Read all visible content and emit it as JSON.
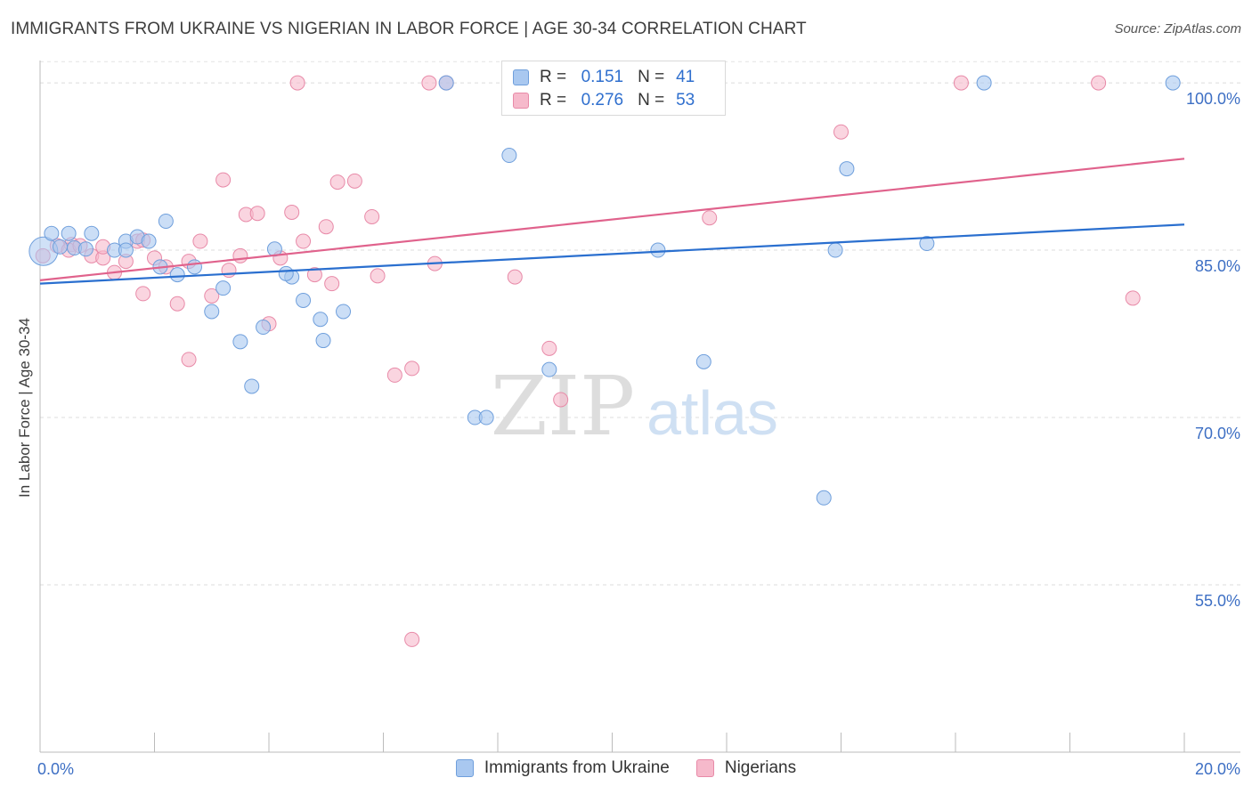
{
  "header": {
    "title": "IMMIGRANTS FROM UKRAINE VS NIGERIAN IN LABOR FORCE | AGE 30-34 CORRELATION CHART",
    "source": "Source: ZipAtlas.com"
  },
  "watermark": {
    "zip": "ZIP",
    "atlas": "atlas"
  },
  "legend": {
    "r_label": "R =",
    "n_label": "N =",
    "series": [
      {
        "r": "0.151",
        "n": "41"
      },
      {
        "r": "0.276",
        "n": "53"
      }
    ]
  },
  "colors": {
    "blue_fill": "#a9c8f0",
    "blue_stroke": "#6f9fdc",
    "blue_line": "#2a6fcf",
    "pink_fill": "#f6b9cb",
    "pink_stroke": "#e88aa8",
    "pink_line": "#e0628c",
    "axis_label": "#3d6fc4"
  },
  "chart_data": {
    "type": "scatter",
    "title": "IMMIGRANTS FROM UKRAINE VS NIGERIAN IN LABOR FORCE | AGE 30-34 CORRELATION CHART",
    "xlabel": "",
    "ylabel": "In Labor Force | Age 30-34",
    "xlim": [
      0,
      20
    ],
    "ylim": [
      40,
      102
    ],
    "x_tick_labels": [
      "0.0%",
      "20.0%"
    ],
    "y_ticks": [
      55,
      70,
      85,
      100
    ],
    "y_tick_labels": [
      "55.0%",
      "70.0%",
      "85.0%",
      "100.0%"
    ],
    "grid": true,
    "legend_position": "top-center",
    "series": [
      {
        "name": "Immigrants from Ukraine",
        "color": "#a9c8f0",
        "trend": {
          "x": [
            0,
            20
          ],
          "y": [
            82.0,
            87.3
          ]
        },
        "points": [
          [
            0.06,
            84.9
          ],
          [
            0.2,
            86.5
          ],
          [
            0.35,
            85.3
          ],
          [
            0.9,
            86.5
          ],
          [
            0.5,
            86.5
          ],
          [
            0.6,
            85.2
          ],
          [
            0.8,
            85.1
          ],
          [
            1.3,
            85.0
          ],
          [
            1.5,
            85.8
          ],
          [
            1.7,
            86.2
          ],
          [
            1.9,
            85.8
          ],
          [
            2.2,
            87.6
          ],
          [
            2.4,
            82.8
          ],
          [
            2.7,
            83.5
          ],
          [
            3.0,
            79.5
          ],
          [
            2.1,
            83.5
          ],
          [
            3.2,
            81.6
          ],
          [
            3.5,
            76.8
          ],
          [
            3.7,
            72.8
          ],
          [
            3.9,
            78.1
          ],
          [
            4.1,
            85.1
          ],
          [
            4.4,
            82.6
          ],
          [
            4.3,
            82.9
          ],
          [
            4.6,
            80.5
          ],
          [
            4.9,
            78.8
          ],
          [
            4.95,
            76.9
          ],
          [
            7.6,
            70.0
          ],
          [
            7.8,
            70.0
          ],
          [
            8.2,
            93.5
          ],
          [
            8.9,
            74.3
          ],
          [
            7.1,
            100.0
          ],
          [
            10.8,
            85.0
          ],
          [
            11.6,
            75.0
          ],
          [
            13.9,
            85.0
          ],
          [
            14.1,
            92.3
          ],
          [
            13.7,
            62.8
          ],
          [
            15.5,
            85.6
          ],
          [
            16.5,
            100.0
          ],
          [
            19.8,
            100.0
          ],
          [
            5.3,
            79.5
          ],
          [
            1.5,
            85.0
          ]
        ]
      },
      {
        "name": "Nigerians",
        "color": "#f6b9cb",
        "trend": {
          "x": [
            0,
            20
          ],
          "y": [
            82.3,
            93.2
          ]
        },
        "points": [
          [
            0.05,
            84.5
          ],
          [
            0.3,
            85.4
          ],
          [
            0.55,
            85.5
          ],
          [
            0.9,
            84.5
          ],
          [
            1.1,
            84.3
          ],
          [
            1.3,
            83.0
          ],
          [
            1.5,
            84.0
          ],
          [
            1.7,
            85.8
          ],
          [
            1.8,
            81.1
          ],
          [
            2.0,
            84.3
          ],
          [
            2.2,
            83.5
          ],
          [
            2.4,
            80.2
          ],
          [
            2.6,
            84.0
          ],
          [
            2.6,
            75.2
          ],
          [
            2.8,
            85.8
          ],
          [
            3.0,
            80.9
          ],
          [
            3.2,
            91.3
          ],
          [
            3.3,
            83.2
          ],
          [
            3.5,
            84.5
          ],
          [
            3.6,
            88.2
          ],
          [
            3.8,
            88.3
          ],
          [
            4.0,
            78.4
          ],
          [
            4.2,
            84.3
          ],
          [
            4.4,
            88.4
          ],
          [
            4.5,
            100.0
          ],
          [
            4.6,
            85.8
          ],
          [
            4.8,
            82.8
          ],
          [
            5.0,
            87.1
          ],
          [
            5.1,
            82.0
          ],
          [
            5.2,
            91.1
          ],
          [
            5.5,
            91.2
          ],
          [
            5.8,
            88.0
          ],
          [
            5.9,
            82.7
          ],
          [
            6.2,
            73.8
          ],
          [
            6.5,
            74.4
          ],
          [
            6.5,
            50.1
          ],
          [
            6.9,
            83.8
          ],
          [
            7.1,
            100.0
          ],
          [
            8.3,
            82.6
          ],
          [
            8.9,
            76.2
          ],
          [
            9.1,
            71.6
          ],
          [
            9.7,
            100.0
          ],
          [
            10.4,
            100.0
          ],
          [
            11.7,
            87.9
          ],
          [
            14.0,
            95.6
          ],
          [
            16.1,
            100.0
          ],
          [
            18.5,
            100.0
          ],
          [
            19.1,
            80.7
          ],
          [
            0.5,
            85.0
          ],
          [
            1.1,
            85.3
          ],
          [
            1.8,
            85.9
          ],
          [
            6.8,
            100.0
          ],
          [
            0.7,
            85.4
          ]
        ]
      }
    ]
  },
  "bottom_legend": {
    "items": [
      {
        "label": "Immigrants from Ukraine"
      },
      {
        "label": "Nigerians"
      }
    ]
  }
}
